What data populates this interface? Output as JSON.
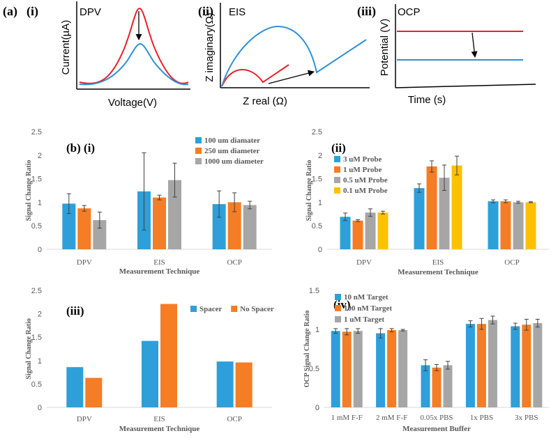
{
  "colors": {
    "blue": "#2e9fd9",
    "orange": "#f47d25",
    "gray": "#a6a6a6",
    "yellow": "#ffc000",
    "red": "#e8202a",
    "schematic_blue": "#2f8fd6",
    "axis": "#d9d9d9",
    "text": "#595959"
  },
  "schematics": {
    "figure_label": "(a)",
    "dpv": {
      "panel": "(i)",
      "title": "DPV",
      "xlabel": "Voltage(V)",
      "ylabel": "Current(µA)",
      "arrow": "down"
    },
    "eis": {
      "panel": "(ii)",
      "title": "EIS",
      "xlabel": "Z real (Ω)",
      "ylabel": "Z imaginary(Ω)",
      "arrow": "right"
    },
    "ocp": {
      "panel": "(iii)",
      "title": "OCP",
      "xlabel": "Time (s)",
      "ylabel": "Potential (V)",
      "arrow": "down"
    }
  },
  "chart_data": [
    {
      "panel": "(b) (i)",
      "type": "bar",
      "categories": [
        "DPV",
        "EIS",
        "OCP"
      ],
      "xlabel": "Measurement Technique",
      "ylabel": "Signal Change Ratio",
      "ylim": [
        0,
        2.5
      ],
      "yticks": [
        "0",
        "0.5",
        "1",
        "1.5",
        "2",
        "2.5"
      ],
      "legend_position": "top-right",
      "grid": false,
      "series": [
        {
          "name": "100 um diamater",
          "color": "blue",
          "values": [
            0.97,
            1.23,
            0.96
          ],
          "errors": [
            0.21,
            0.82,
            0.28
          ]
        },
        {
          "name": "250 um diameter",
          "color": "orange",
          "values": [
            0.87,
            1.1,
            1.0
          ],
          "errors": [
            0.06,
            0.05,
            0.2
          ]
        },
        {
          "name": "1000 um diameter",
          "color": "gray",
          "values": [
            0.62,
            1.47,
            0.94
          ],
          "errors": [
            0.17,
            0.36,
            0.08
          ]
        }
      ]
    },
    {
      "panel": "(ii)",
      "type": "bar",
      "categories": [
        "DPV",
        "EIS",
        "OCP"
      ],
      "xlabel": "Measurement Technique",
      "ylabel": "Signal Change Ratio",
      "ylim": [
        0,
        2.5
      ],
      "yticks": [
        "0",
        "0.5",
        "1",
        "1.5",
        "2",
        "2.5"
      ],
      "legend_position": "top-left",
      "grid": false,
      "series": [
        {
          "name": "3 uM Probe",
          "color": "blue",
          "values": [
            0.69,
            1.3,
            1.02
          ],
          "errors": [
            0.08,
            0.09,
            0.03
          ]
        },
        {
          "name": "1 uM Probe",
          "color": "orange",
          "values": [
            0.61,
            1.76,
            1.02
          ],
          "errors": [
            0.02,
            0.12,
            0.03
          ]
        },
        {
          "name": "0.5 uM Probe",
          "color": "gray",
          "values": [
            0.78,
            1.52,
            1.0
          ],
          "errors": [
            0.08,
            0.27,
            0.02
          ]
        },
        {
          "name": "0.1 uM Probe",
          "color": "yellow",
          "values": [
            0.78,
            1.78,
            1.0
          ],
          "errors": [
            0.03,
            0.2,
            0.01
          ]
        }
      ]
    },
    {
      "panel": "(iii)",
      "type": "bar",
      "categories": [
        "DPV",
        "EIS",
        "OCP"
      ],
      "xlabel": "Measurement Technique",
      "ylabel": "Signal Change Ratio",
      "ylim": [
        0,
        2.5
      ],
      "yticks": [
        "0",
        "0.5",
        "1",
        "1.5",
        "2",
        "2.5"
      ],
      "legend_position": "top-right",
      "grid": false,
      "series": [
        {
          "name": "Spacer",
          "color": "blue",
          "values": [
            0.86,
            1.42,
            0.98
          ]
        },
        {
          "name": "No Spacer",
          "color": "orange",
          "values": [
            0.63,
            2.21,
            0.96
          ]
        }
      ]
    },
    {
      "panel": "(iv)",
      "type": "bar",
      "categories": [
        "1 mM F-F",
        "2 mM F-F",
        "0.05x PBS",
        "1x PBS",
        "3x PBS"
      ],
      "xlabel": "Measurement Buffer",
      "ylabel": "OCP Signal Change Ratio",
      "ylim": [
        0,
        1.5
      ],
      "yticks": [
        "0",
        "0.5",
        "1",
        "1.5"
      ],
      "legend_position": "top-left",
      "grid": false,
      "series": [
        {
          "name": "10 nM Target",
          "color": "blue",
          "values": [
            0.98,
            0.95,
            0.54,
            1.07,
            1.04
          ],
          "errors": [
            0.03,
            0.06,
            0.07,
            0.04,
            0.04
          ]
        },
        {
          "name": "100 nM Target",
          "color": "orange",
          "values": [
            0.97,
            0.99,
            0.51,
            1.07,
            1.06
          ],
          "errors": [
            0.04,
            0.02,
            0.04,
            0.07,
            0.07
          ]
        },
        {
          "name": "1 uM Target",
          "color": "gray",
          "values": [
            0.98,
            0.99,
            0.54,
            1.12,
            1.08
          ],
          "errors": [
            0.03,
            0.01,
            0.05,
            0.05,
            0.05
          ]
        }
      ]
    }
  ]
}
